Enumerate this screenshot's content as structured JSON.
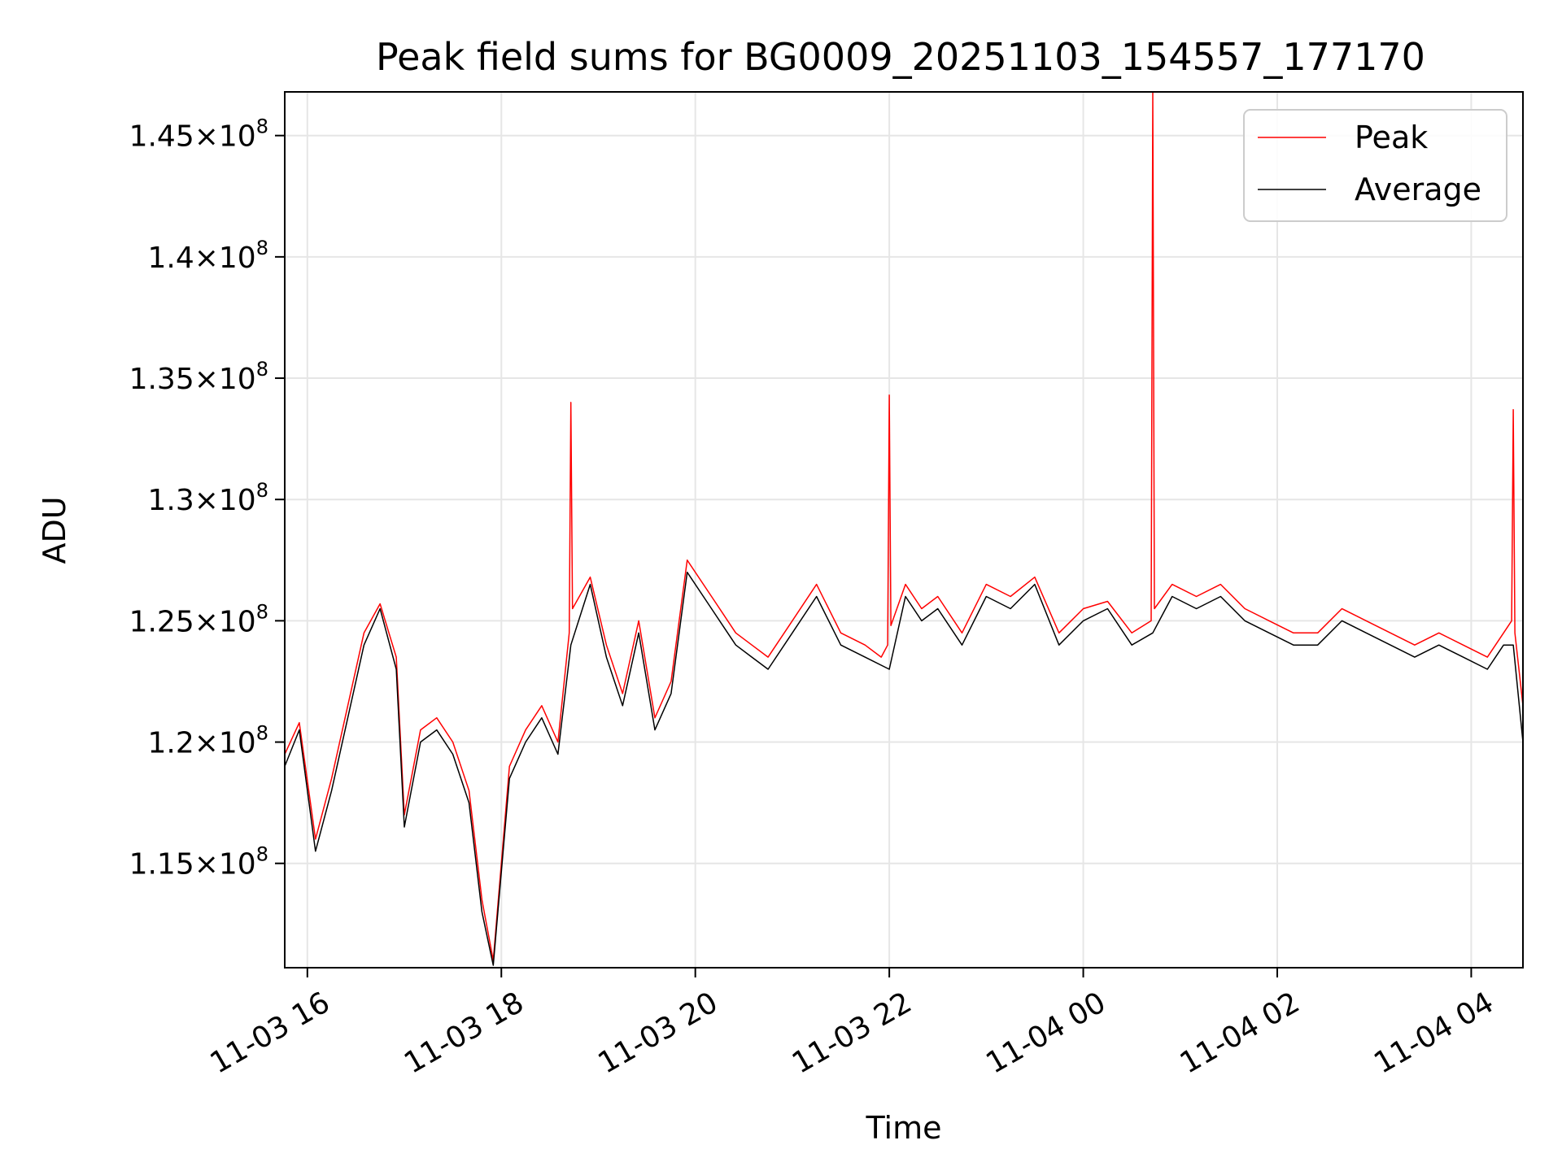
{
  "chart_data": {
    "type": "line",
    "title": "Peak field sums for BG0009_20251103_154557_177170",
    "xlabel": "Time",
    "ylabel": "ADU",
    "xlim": [
      "2025-11-03 15:46",
      "2025-11-04 04:32"
    ],
    "ylim": [
      110700000.0,
      146800000.0
    ],
    "grid": true,
    "legend": "top-right",
    "x_ticks": [
      {
        "value": "2025-11-03 16:00",
        "label": "11-03 16"
      },
      {
        "value": "2025-11-03 18:00",
        "label": "11-03 18"
      },
      {
        "value": "2025-11-03 20:00",
        "label": "11-03 20"
      },
      {
        "value": "2025-11-03 22:00",
        "label": "11-03 22"
      },
      {
        "value": "2025-11-04 00:00",
        "label": "11-04 00"
      },
      {
        "value": "2025-11-04 02:00",
        "label": "11-04 02"
      },
      {
        "value": "2025-11-04 04:00",
        "label": "11-04 04"
      }
    ],
    "y_ticks": [
      {
        "value": 115000000,
        "mantissa": "1.15",
        "exponent": "8"
      },
      {
        "value": 120000000,
        "mantissa": "1.2",
        "exponent": "8"
      },
      {
        "value": 125000000,
        "mantissa": "1.25",
        "exponent": "8"
      },
      {
        "value": 130000000,
        "mantissa": "1.3",
        "exponent": "8"
      },
      {
        "value": 135000000,
        "mantissa": "1.35",
        "exponent": "8"
      },
      {
        "value": 140000000,
        "mantissa": "1.4",
        "exponent": "8"
      },
      {
        "value": 145000000,
        "mantissa": "1.45",
        "exponent": "8"
      }
    ],
    "series": [
      {
        "name": "Peak",
        "color": "#ff0000",
        "x": [
          "2025-11-03 15:46",
          "2025-11-03 15:55",
          "2025-11-03 16:05",
          "2025-11-03 16:15",
          "2025-11-03 16:25",
          "2025-11-03 16:35",
          "2025-11-03 16:45",
          "2025-11-03 16:55",
          "2025-11-03 17:00",
          "2025-11-03 17:10",
          "2025-11-03 17:20",
          "2025-11-03 17:30",
          "2025-11-03 17:40",
          "2025-11-03 17:48",
          "2025-11-03 17:55",
          "2025-11-03 18:05",
          "2025-11-03 18:15",
          "2025-11-03 18:25",
          "2025-11-03 18:35",
          "2025-11-03 18:42",
          "2025-11-03 18:43",
          "2025-11-03 18:44",
          "2025-11-03 18:55",
          "2025-11-03 19:05",
          "2025-11-03 19:15",
          "2025-11-03 19:25",
          "2025-11-03 19:35",
          "2025-11-03 19:45",
          "2025-11-03 19:55",
          "2025-11-03 20:10",
          "2025-11-03 20:25",
          "2025-11-03 20:35",
          "2025-11-03 20:45",
          "2025-11-03 21:00",
          "2025-11-03 21:15",
          "2025-11-03 21:30",
          "2025-11-03 21:45",
          "2025-11-03 21:55",
          "2025-11-03 21:59",
          "2025-11-03 22:00",
          "2025-11-03 22:01",
          "2025-11-03 22:10",
          "2025-11-03 22:20",
          "2025-11-03 22:30",
          "2025-11-03 22:45",
          "2025-11-03 23:00",
          "2025-11-03 23:15",
          "2025-11-03 23:30",
          "2025-11-03 23:45",
          "2025-11-04 00:00",
          "2025-11-04 00:15",
          "2025-11-04 00:30",
          "2025-11-04 00:42",
          "2025-11-04 00:43",
          "2025-11-04 00:44",
          "2025-11-04 00:55",
          "2025-11-04 01:10",
          "2025-11-04 01:25",
          "2025-11-04 01:40",
          "2025-11-04 01:55",
          "2025-11-04 02:10",
          "2025-11-04 02:25",
          "2025-11-04 02:40",
          "2025-11-04 02:55",
          "2025-11-04 03:10",
          "2025-11-04 03:25",
          "2025-11-04 03:40",
          "2025-11-04 03:55",
          "2025-11-04 04:10",
          "2025-11-04 04:20",
          "2025-11-04 04:25",
          "2025-11-04 04:26",
          "2025-11-04 04:27",
          "2025-11-04 04:32"
        ],
        "y": [
          119500000,
          120800000,
          116000000,
          118500000,
          121500000,
          124500000,
          125700000,
          123500000,
          117000000,
          120500000,
          121000000,
          120000000,
          118000000,
          113500000,
          111000000,
          119000000,
          120500000,
          121500000,
          120000000,
          124500000,
          134000000,
          125500000,
          126800000,
          124000000,
          122000000,
          125000000,
          121000000,
          122500000,
          127500000,
          126000000,
          124500000,
          124000000,
          123500000,
          125000000,
          126500000,
          124500000,
          124000000,
          123500000,
          124000000,
          134300000,
          124800000,
          126500000,
          125500000,
          126000000,
          124500000,
          126500000,
          126000000,
          126800000,
          124500000,
          125500000,
          125800000,
          124500000,
          125000000,
          146800000,
          125500000,
          126500000,
          126000000,
          126500000,
          125500000,
          125000000,
          124500000,
          124500000,
          125500000,
          125000000,
          124500000,
          124000000,
          124500000,
          124000000,
          123500000,
          124500000,
          125000000,
          133700000,
          124500000,
          121500000
        ]
      },
      {
        "name": "Average",
        "color": "#000000",
        "x": [
          "2025-11-03 15:46",
          "2025-11-03 15:55",
          "2025-11-03 16:05",
          "2025-11-03 16:15",
          "2025-11-03 16:25",
          "2025-11-03 16:35",
          "2025-11-03 16:45",
          "2025-11-03 16:55",
          "2025-11-03 17:00",
          "2025-11-03 17:10",
          "2025-11-03 17:20",
          "2025-11-03 17:30",
          "2025-11-03 17:40",
          "2025-11-03 17:48",
          "2025-11-03 17:55",
          "2025-11-03 18:05",
          "2025-11-03 18:15",
          "2025-11-03 18:25",
          "2025-11-03 18:35",
          "2025-11-03 18:43",
          "2025-11-03 18:55",
          "2025-11-03 19:05",
          "2025-11-03 19:15",
          "2025-11-03 19:25",
          "2025-11-03 19:35",
          "2025-11-03 19:45",
          "2025-11-03 19:55",
          "2025-11-03 20:10",
          "2025-11-03 20:25",
          "2025-11-03 20:35",
          "2025-11-03 20:45",
          "2025-11-03 21:00",
          "2025-11-03 21:15",
          "2025-11-03 21:30",
          "2025-11-03 21:45",
          "2025-11-03 22:00",
          "2025-11-03 22:10",
          "2025-11-03 22:20",
          "2025-11-03 22:30",
          "2025-11-03 22:45",
          "2025-11-03 23:00",
          "2025-11-03 23:15",
          "2025-11-03 23:30",
          "2025-11-03 23:45",
          "2025-11-04 00:00",
          "2025-11-04 00:15",
          "2025-11-04 00:30",
          "2025-11-04 00:43",
          "2025-11-04 00:55",
          "2025-11-04 01:10",
          "2025-11-04 01:25",
          "2025-11-04 01:40",
          "2025-11-04 01:55",
          "2025-11-04 02:10",
          "2025-11-04 02:25",
          "2025-11-04 02:40",
          "2025-11-04 02:55",
          "2025-11-04 03:10",
          "2025-11-04 03:25",
          "2025-11-04 03:40",
          "2025-11-04 03:55",
          "2025-11-04 04:10",
          "2025-11-04 04:20",
          "2025-11-04 04:26",
          "2025-11-04 04:32"
        ],
        "y": [
          119000000,
          120500000,
          115500000,
          118000000,
          121000000,
          124000000,
          125500000,
          123000000,
          116500000,
          120000000,
          120500000,
          119500000,
          117500000,
          113000000,
          110800000,
          118500000,
          120000000,
          121000000,
          119500000,
          124000000,
          126500000,
          123500000,
          121500000,
          124500000,
          120500000,
          122000000,
          127000000,
          125500000,
          124000000,
          123500000,
          123000000,
          124500000,
          126000000,
          124000000,
          123500000,
          123000000,
          126000000,
          125000000,
          125500000,
          124000000,
          126000000,
          125500000,
          126500000,
          124000000,
          125000000,
          125500000,
          124000000,
          124500000,
          126000000,
          125500000,
          126000000,
          125000000,
          124500000,
          124000000,
          124000000,
          125000000,
          124500000,
          124000000,
          123500000,
          124000000,
          123500000,
          123000000,
          124000000,
          124000000,
          120000000
        ]
      }
    ]
  }
}
